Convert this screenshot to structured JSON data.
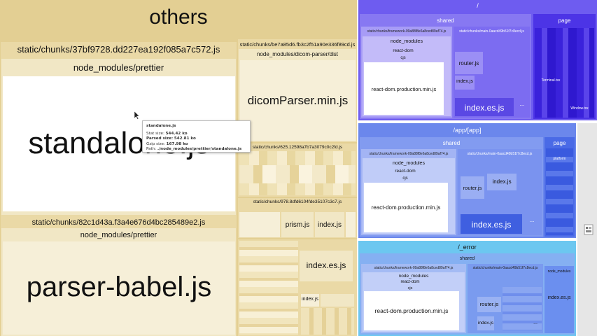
{
  "left": {
    "title": "others",
    "chunk_a": {
      "name": "static/chunks/37bf9728.dd227ea192f085a7c572.js",
      "module": "node_modules/prettier",
      "file": "standalone.js"
    },
    "chunk_b": {
      "name": "static/chunks/82c1d43a.f3a4e676d4bc285489e2.js",
      "module": "node_modules/prettier",
      "file": "parser-babel.js"
    },
    "chunk_c": {
      "name": "static/chunks/be7a85d6.fb3c2f51a90e336f89cd.js",
      "module": "node_modules/dicom-parser/dist",
      "file": "dicomParser.min.js"
    },
    "chunk_d": {
      "name": "static/chunks/625.12598a7b7a3079c0c2fd.js"
    },
    "chunk_e": {
      "name": "static/chunks/978.8dfd6104fde35107c3c7.js",
      "files": [
        "prism.js",
        "index.js"
      ]
    },
    "chunk_f": {
      "files": [
        "index.es.js",
        "index.js"
      ]
    },
    "tooltip": {
      "title": "standalone.js",
      "stat_label": "Stat size:",
      "stat_value": "544.42 ko",
      "parsed_label": "Parsed size:",
      "parsed_value": "542.81 ko",
      "gzip_label": "Gzip size:",
      "gzip_value": "167.98 ko",
      "path_label": "Path:",
      "path_value": "./node_modules/prettier/standalone.js"
    }
  },
  "panels": [
    {
      "title": "/",
      "shared": "shared",
      "framework": "static/chunks/framework-09a88f8e6a8ced89af74.js",
      "node_modules": "node_modules",
      "react_dom": "react-dom",
      "cjs": "cjs",
      "react_dom_file": "react-dom.production.min.js",
      "main": "static/chunks/main-0aacd49b51f7c8ecd.js",
      "router": "router.js",
      "index": "index.js",
      "index_es": "index.es.js",
      "dots": "...",
      "page": "page",
      "page_sub": "Terminal.tsx",
      "page_sub2": "Window.tsx"
    },
    {
      "title": "/app/[app]",
      "shared": "shared",
      "framework": "static/chunks/framework-09a88f8e6a8ced89af74.js",
      "node_modules": "node_modules",
      "react_dom": "react-dom",
      "cjs": "cjs",
      "react_dom_file": "react-dom.production.min.js",
      "main": "static/chunks/main-0aacd49b51f7c8ecd.js",
      "router": "router.js",
      "index": "index.js",
      "index_es": "index.es.js",
      "dots": "...",
      "page": "page",
      "page_sub": "platform"
    },
    {
      "title": "/_error",
      "shared": "shared",
      "framework": "static/chunks/framework-09a88f8e6a8ced89af74.js",
      "node_modules": "node_modules",
      "react_dom": "react-dom",
      "cjs": "cjs",
      "react_dom_file": "react-dom.production.min.js",
      "main": "static/chunks/main-0aacd49b51f7c8ecd.js",
      "router": "router.js",
      "index": "index.js",
      "index_es": "index.es.js",
      "dots": "...",
      "page": "node_modules",
      "page_sub": "index.es.js"
    }
  ],
  "colors": {
    "panel1_bg": "#6a5cf0",
    "panel2_bg": "#6b87ec",
    "panel3_bg": "#6cc7f0",
    "left_bg": "#e3cf93"
  }
}
